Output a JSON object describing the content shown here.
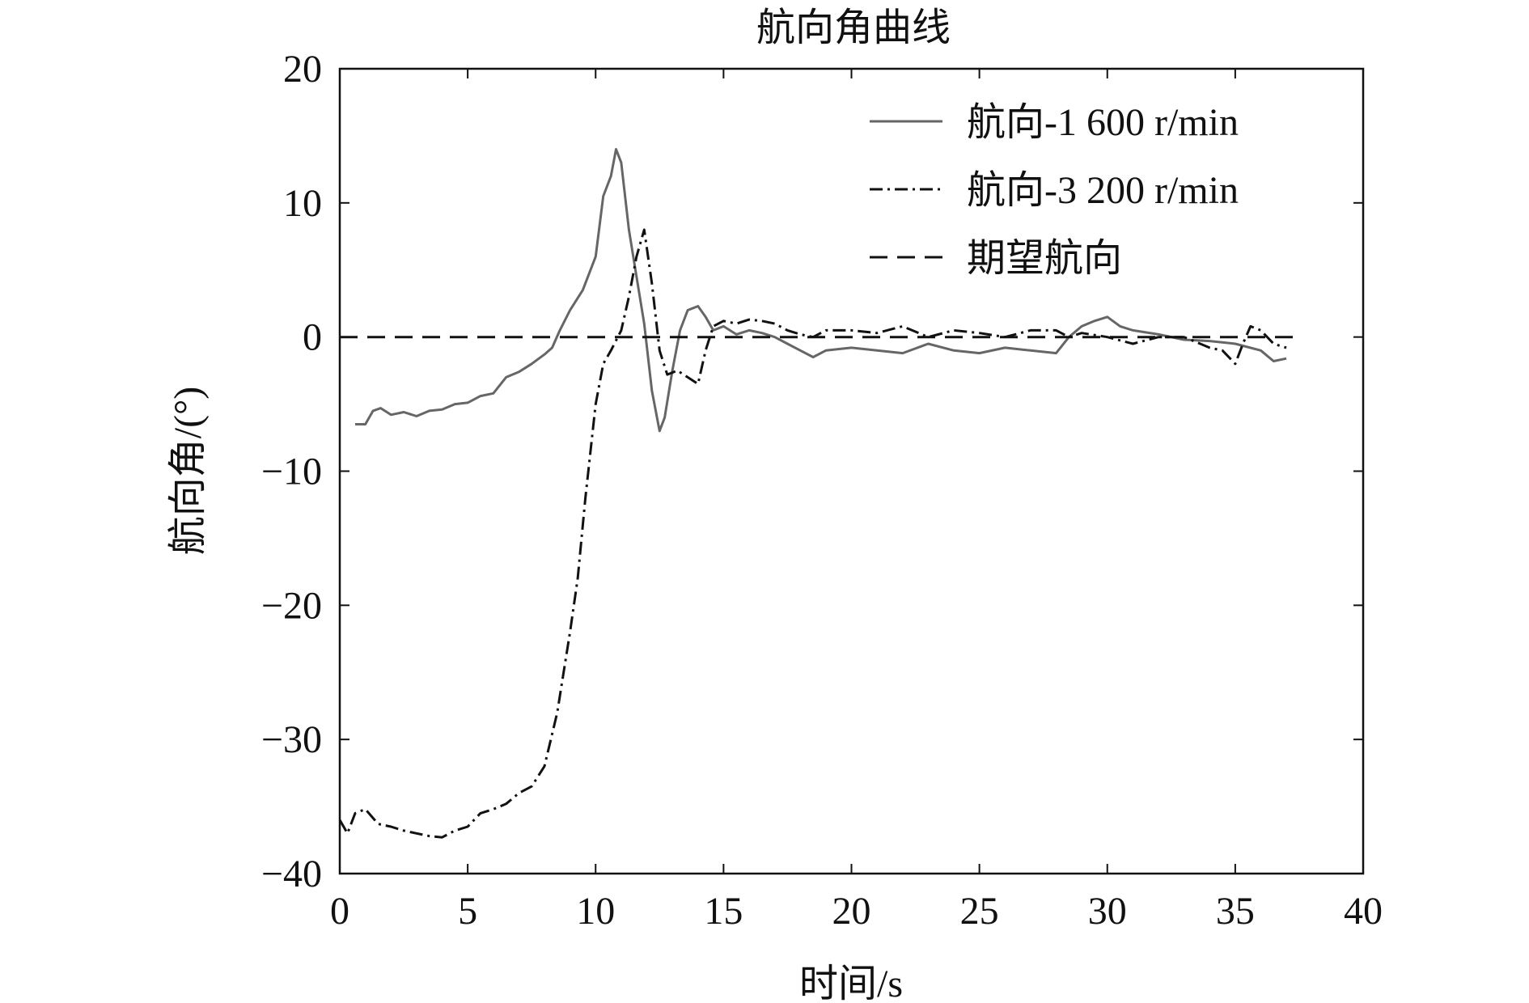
{
  "chart_data": {
    "type": "line",
    "title": "航向角曲线",
    "xlabel": "时间/s",
    "ylabel": "航向角/(°)",
    "xlim": [
      0,
      40
    ],
    "ylim": [
      -40,
      20
    ],
    "xticks": [
      0,
      5,
      10,
      15,
      20,
      25,
      30,
      35,
      40
    ],
    "yticks": [
      20,
      10,
      0,
      -10,
      -20,
      -30,
      -40
    ],
    "xtick_labels": [
      "0",
      "5",
      "10",
      "15",
      "20",
      "25",
      "30",
      "35",
      "40"
    ],
    "ytick_labels": [
      "20",
      "10",
      "0",
      "−10",
      "−20",
      "−30",
      "−40"
    ],
    "grid": false,
    "legend_position": "top-right",
    "series": [
      {
        "name": "航向-1 600 r/min",
        "style": "solid",
        "color": "#666666",
        "x": [
          0.6,
          1.0,
          1.3,
          1.6,
          2.0,
          2.5,
          3.0,
          3.5,
          4.0,
          4.5,
          5.0,
          5.5,
          6.0,
          6.5,
          7.0,
          7.5,
          8.0,
          8.3,
          8.6,
          9.0,
          9.5,
          10.0,
          10.3,
          10.6,
          10.8,
          11.0,
          11.3,
          11.6,
          11.9,
          12.2,
          12.5,
          12.7,
          13.0,
          13.3,
          13.6,
          14.0,
          14.3,
          14.6,
          15.0,
          15.5,
          16.0,
          16.5,
          17.0,
          17.5,
          18.0,
          18.5,
          19.0,
          20.0,
          21.0,
          22.0,
          23.0,
          24.0,
          25.0,
          26.0,
          27.0,
          28.0,
          28.5,
          29.0,
          29.5,
          30.0,
          30.5,
          31.0,
          32.0,
          33.0,
          34.0,
          35.0,
          36.0,
          36.5,
          37.0
        ],
        "y": [
          -6.5,
          -6.5,
          -5.5,
          -5.3,
          -5.8,
          -5.6,
          -5.9,
          -5.5,
          -5.4,
          -5.0,
          -4.9,
          -4.4,
          -4.2,
          -3.0,
          -2.6,
          -2.0,
          -1.3,
          -0.8,
          0.5,
          2.0,
          3.5,
          6.0,
          10.5,
          12.0,
          14.0,
          13.0,
          8.0,
          4.5,
          1.0,
          -4.0,
          -7.0,
          -6.0,
          -2.5,
          0.5,
          2.0,
          2.3,
          1.5,
          0.5,
          0.8,
          0.2,
          0.5,
          0.3,
          0.0,
          -0.5,
          -1.0,
          -1.5,
          -1.0,
          -0.8,
          -1.0,
          -1.2,
          -0.5,
          -1.0,
          -1.2,
          -0.8,
          -1.0,
          -1.2,
          0.0,
          0.8,
          1.2,
          1.5,
          0.8,
          0.5,
          0.2,
          -0.2,
          -0.3,
          -0.5,
          -1.0,
          -1.8,
          -1.6
        ]
      },
      {
        "name": "航向-3 200 r/min",
        "style": "dashdot",
        "color": "#111111",
        "x": [
          0.0,
          0.3,
          0.6,
          1.0,
          1.5,
          2.0,
          2.5,
          3.0,
          3.5,
          4.0,
          4.5,
          5.0,
          5.5,
          6.0,
          6.5,
          7.0,
          7.5,
          8.0,
          8.5,
          9.0,
          9.3,
          9.6,
          10.0,
          10.3,
          10.6,
          11.0,
          11.3,
          11.6,
          11.9,
          12.2,
          12.5,
          12.8,
          13.2,
          13.6,
          14.0,
          14.3,
          14.6,
          15.0,
          15.5,
          16.0,
          16.5,
          17.0,
          17.5,
          18.0,
          18.5,
          19.0,
          20.0,
          21.0,
          22.0,
          23.0,
          24.0,
          25.0,
          26.0,
          27.0,
          28.0,
          28.5,
          29.0,
          30.0,
          31.0,
          32.0,
          33.0,
          34.0,
          34.5,
          35.0,
          35.3,
          35.6,
          36.0,
          36.5,
          37.0
        ],
        "y": [
          -36.0,
          -37.0,
          -35.5,
          -35.2,
          -36.3,
          -36.5,
          -36.8,
          -37.0,
          -37.2,
          -37.3,
          -36.8,
          -36.5,
          -35.5,
          -35.2,
          -34.8,
          -34.0,
          -33.5,
          -32.0,
          -28.0,
          -22.0,
          -18.0,
          -12.0,
          -5.0,
          -2.0,
          -1.0,
          0.5,
          3.0,
          6.0,
          8.0,
          4.0,
          -1.0,
          -2.8,
          -2.5,
          -3.0,
          -3.5,
          -1.0,
          0.8,
          1.2,
          1.0,
          1.3,
          1.2,
          1.0,
          0.5,
          0.2,
          0.0,
          0.5,
          0.5,
          0.3,
          0.8,
          0.0,
          0.5,
          0.3,
          0.0,
          0.5,
          0.5,
          0.0,
          0.3,
          0.0,
          -0.5,
          0.0,
          0.0,
          -0.8,
          -1.0,
          -2.0,
          -0.5,
          0.8,
          0.5,
          -0.5,
          -0.8
        ]
      },
      {
        "name": "期望航向",
        "style": "dashed",
        "color": "#111111",
        "x": [
          0,
          37.5
        ],
        "y": [
          0,
          0
        ]
      }
    ]
  }
}
